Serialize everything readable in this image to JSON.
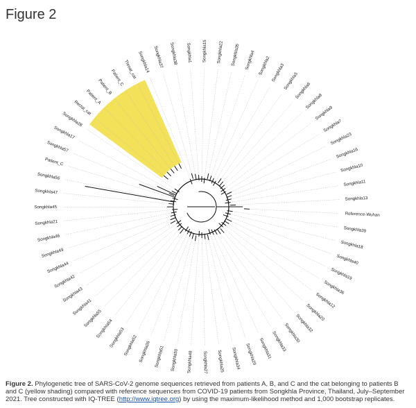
{
  "figure_title": "Figure 2",
  "caption": {
    "label": "Figure 2.",
    "text_before_link": " Phylogenetic tree of SARS-CoV-2 genome sequences retrieved from patients A, B, and C and the cat belonging to patients B and C (yellow shading) compared with reference sequences from COVID-19 patients from Songkhla Province, Thailand, July–September 2021. Tree constructed with IQ-TREE (",
    "link_text": "http://www.iqtree.org",
    "text_after_link": ") by using the maximum-likelihood method and 1,000 bootstrap replicates."
  },
  "highlight_color": "#f0dc3c",
  "tree": {
    "highlighted_tips": [
      "Throat_cat",
      "Patient_C",
      "Patient_B",
      "Patient_A",
      "Rectal_cat"
    ],
    "tips": [
      "Songkhla22",
      "Songkhla35",
      "Songkhla4",
      "Songkhla2",
      "Songkhla3",
      "Songkhla5",
      "Songkhla6",
      "Songkhla8",
      "Songkhla9",
      "Songkhla7",
      "Songkhla23",
      "Songkhla16",
      "Songkhla10",
      "Songkhla11",
      "Songkhla13",
      "Reference-Wuhan",
      "Songkhla39",
      "Songkhla18",
      "Songkhla40",
      "Songkhla19",
      "Songkhla36",
      "Songkhla12",
      "Songkhla20",
      "Songkhla32",
      "Songkhla30",
      "Songkhla33",
      "Songkhla31",
      "Songkhla29",
      "Songkhla34",
      "Songkhla25",
      "Songkhla27",
      "Songkhla48",
      "Songkhla50",
      "Songkhla51",
      "Songkhla26",
      "Songkhla52",
      "Songkhla53",
      "Songkhla54",
      "Songkhla55",
      "Songkhla41",
      "Songkhla43",
      "Songkhla42",
      "Songkhla44",
      "Songkhla49",
      "Songkhla46",
      "Songkhla21",
      "Songkhla45",
      "Songkhla47",
      "Songkhla56",
      "Patient_C",
      "Songkhla57",
      "Songkhla17",
      "Songkhla28",
      "Rectal_cat",
      "Patient_A",
      "Patient_B",
      "Patient_C",
      "Throat_cat",
      "Songkhla14",
      "Songkhla37",
      "Songkhla38",
      "Songkhla1",
      "Songkhla15"
    ]
  }
}
